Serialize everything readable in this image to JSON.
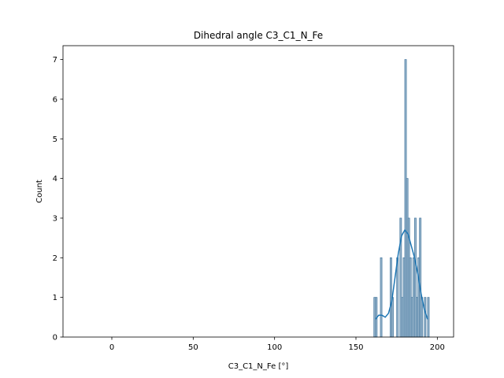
{
  "chart_data": {
    "type": "histogram",
    "title": "Dihedral angle C3_C1_N_Fe",
    "xlabel": "C3_C1_N_Fe [°]",
    "ylabel": "Count",
    "xlim": [
      -30,
      210
    ],
    "ylim": [
      0,
      7.35
    ],
    "xticks": [
      0,
      50,
      100,
      150,
      200
    ],
    "yticks": [
      0,
      1,
      2,
      3,
      4,
      5,
      6,
      7
    ],
    "grid": false,
    "legend": "none",
    "bar_color": "#9db9cf",
    "bar_edge_color": "#4e7ea3",
    "kde_color": "#1f77b4",
    "bins": [
      {
        "x": 161.5,
        "count": 1
      },
      {
        "x": 162.5,
        "count": 1
      },
      {
        "x": 165.5,
        "count": 2
      },
      {
        "x": 171.5,
        "count": 2
      },
      {
        "x": 172.5,
        "count": 1
      },
      {
        "x": 175.5,
        "count": 2
      },
      {
        "x": 177.5,
        "count": 3
      },
      {
        "x": 178.5,
        "count": 1
      },
      {
        "x": 179.5,
        "count": 2
      },
      {
        "x": 180.5,
        "count": 7
      },
      {
        "x": 181.5,
        "count": 4
      },
      {
        "x": 182.5,
        "count": 3
      },
      {
        "x": 183.5,
        "count": 2
      },
      {
        "x": 184.5,
        "count": 1
      },
      {
        "x": 185.5,
        "count": 2
      },
      {
        "x": 186.5,
        "count": 3
      },
      {
        "x": 187.5,
        "count": 1
      },
      {
        "x": 188.5,
        "count": 2
      },
      {
        "x": 189.5,
        "count": 3
      },
      {
        "x": 190.5,
        "count": 1
      },
      {
        "x": 192.5,
        "count": 1
      },
      {
        "x": 194.5,
        "count": 1
      }
    ],
    "kde": {
      "x": [
        162,
        164,
        166,
        168,
        170,
        172,
        174,
        176,
        178,
        180,
        182,
        184,
        186,
        188,
        190,
        192,
        194
      ],
      "y": [
        0.45,
        0.55,
        0.55,
        0.5,
        0.6,
        0.9,
        1.5,
        2.1,
        2.55,
        2.7,
        2.6,
        2.3,
        2.0,
        1.6,
        1.1,
        0.7,
        0.45
      ]
    }
  }
}
